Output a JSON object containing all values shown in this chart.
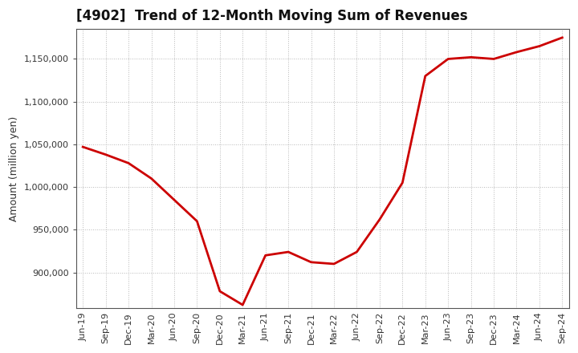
{
  "title": "[4902]  Trend of 12-Month Moving Sum of Revenues",
  "ylabel": "Amount (million yen)",
  "line_color": "#cc0000",
  "background_color": "#ffffff",
  "plot_bg_color": "#ffffff",
  "grid_color": "#b0b0b0",
  "x_labels": [
    "Jun-19",
    "Sep-19",
    "Dec-19",
    "Mar-20",
    "Jun-20",
    "Sep-20",
    "Dec-20",
    "Mar-21",
    "Jun-21",
    "Sep-21",
    "Dec-21",
    "Mar-22",
    "Jun-22",
    "Sep-22",
    "Dec-22",
    "Mar-23",
    "Jun-23",
    "Sep-23",
    "Dec-23",
    "Mar-24",
    "Jun-24",
    "Sep-24"
  ],
  "x_values": [
    0,
    1,
    2,
    3,
    4,
    5,
    6,
    7,
    8,
    9,
    10,
    11,
    12,
    13,
    14,
    15,
    16,
    17,
    18,
    19,
    20,
    21
  ],
  "y_values": [
    1047000,
    1038000,
    1028000,
    1010000,
    985000,
    960000,
    878000,
    862000,
    920000,
    924000,
    912000,
    910000,
    924000,
    962000,
    1005000,
    1130000,
    1150000,
    1152000,
    1150000,
    1158000,
    1165000,
    1175000
  ],
  "ylim": [
    858000,
    1185000
  ],
  "yticks": [
    900000,
    950000,
    1000000,
    1050000,
    1100000,
    1150000
  ],
  "title_fontsize": 12,
  "ylabel_fontsize": 9,
  "tick_fontsize": 8
}
